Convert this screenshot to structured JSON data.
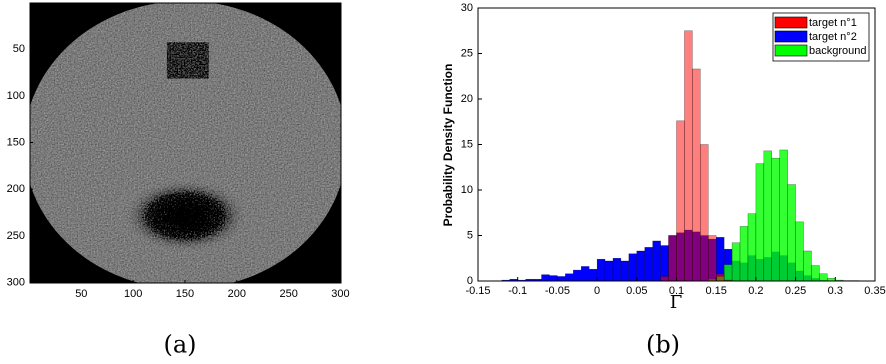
{
  "chart_data": [
    {
      "type": "image",
      "xlim": [
        0.5,
        300.5
      ],
      "ylim": [
        300.5,
        0.5
      ],
      "xticks": [
        50,
        100,
        150,
        200,
        250,
        300
      ],
      "yticks": [
        50,
        100,
        150,
        200,
        250,
        300
      ],
      "caption": "(a)"
    },
    {
      "type": "histogram",
      "caption": "(b)",
      "xlabel": "Γ",
      "ylabel": "Probability Density Function",
      "xlim": [
        -0.15,
        0.35
      ],
      "ylim": [
        0,
        30
      ],
      "xticks": [
        -0.15,
        -0.1,
        -0.05,
        0,
        0.05,
        0.1,
        0.15,
        0.2,
        0.25,
        0.3,
        0.35
      ],
      "yticks": [
        0,
        5,
        10,
        15,
        20,
        25,
        30
      ],
      "legend": "upper right",
      "bins": [
        -0.12,
        -0.11,
        -0.1,
        -0.09,
        -0.08,
        -0.07,
        -0.06,
        -0.05,
        -0.04,
        -0.03,
        -0.02,
        -0.01,
        0,
        0.01,
        0.02,
        0.03,
        0.04,
        0.05,
        0.06,
        0.07,
        0.08,
        0.09,
        0.1,
        0.11,
        0.12,
        0.13,
        0.14,
        0.15,
        0.16,
        0.17,
        0.18,
        0.19,
        0.2,
        0.21,
        0.22,
        0.23,
        0.24,
        0.25,
        0.26,
        0.27,
        0.28,
        0.29,
        0.3,
        0.31,
        0.32,
        0.33,
        0.34
      ],
      "series": [
        {
          "name": "target n°1",
          "color": "#ff0000",
          "opacity": 0.5,
          "values": [
            0,
            0,
            0,
            0,
            0,
            0,
            0,
            0,
            0,
            0,
            0,
            0,
            0,
            0,
            0,
            0,
            0,
            0,
            0,
            0,
            0.5,
            5.0,
            17.6,
            27.5,
            23.3,
            15.0,
            5.0,
            0.8,
            0.1,
            0,
            0,
            0,
            0,
            0,
            0,
            0,
            0,
            0,
            0,
            0,
            0,
            0,
            0,
            0,
            0,
            0
          ]
        },
        {
          "name": "target n°2",
          "color": "#0000ff",
          "opacity": 1,
          "values": [
            0.1,
            0.2,
            0.1,
            0.2,
            0.2,
            0.7,
            0.6,
            0.5,
            0.8,
            1.2,
            1.6,
            1.3,
            2.4,
            2.2,
            2.5,
            2.2,
            3.0,
            3.3,
            3.7,
            4.4,
            3.9,
            5.0,
            5.3,
            5.6,
            5.4,
            5.0,
            4.6,
            4.8,
            3.5,
            2.2,
            2.0,
            2.8,
            2.4,
            2.6,
            3.2,
            2.8,
            2.0,
            1.1,
            0.6,
            0.3,
            0.1,
            0.05,
            0,
            0,
            0,
            0
          ]
        },
        {
          "name": "background",
          "color": "#00ff00",
          "opacity": 0.8,
          "values": [
            0,
            0,
            0,
            0,
            0,
            0,
            0,
            0,
            0,
            0,
            0,
            0,
            0,
            0,
            0,
            0,
            0,
            0,
            0,
            0,
            0,
            0,
            0,
            0,
            0,
            0,
            0.2,
            0.5,
            1.8,
            4.2,
            6.0,
            7.4,
            12.9,
            14.3,
            13.5,
            14.4,
            10.6,
            6.5,
            3.3,
            1.7,
            0.8,
            0.3,
            0.1,
            0.05,
            0.05,
            0
          ]
        }
      ]
    }
  ]
}
